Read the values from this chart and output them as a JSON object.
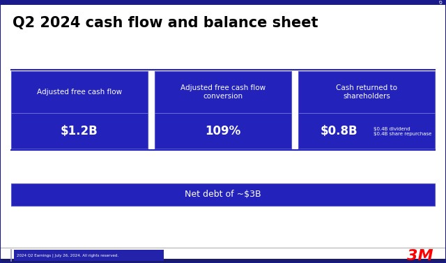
{
  "title": "Q2 2024 cash flow and balance sheet",
  "title_fontsize": 15,
  "title_color": "#000000",
  "background_color": "#ffffff",
  "card_blue": "#2323bb",
  "separator_color": "#2323bb",
  "cards": [
    {
      "label": "Adjusted free cash flow",
      "value": "$1.2B",
      "note": null
    },
    {
      "label": "Adjusted free cash flow\nconversion",
      "value": "109%",
      "note": null
    },
    {
      "label": "Cash returned to\nshareholders",
      "value": "$0.8B",
      "note": "$0.4B dividend\n$0.4B share repurchase"
    }
  ],
  "net_debt_text": "Net debt of ~$3B",
  "footer_text": "2024 Q2 Earnings | July 26, 2024. All rights reserved.",
  "page_number": "6",
  "logo_color": "#ff0000",
  "top_bar_color": "#1a1a8c",
  "bottom_bar_color": "#1a1a6e",
  "footer_box_color": "#2222aa"
}
